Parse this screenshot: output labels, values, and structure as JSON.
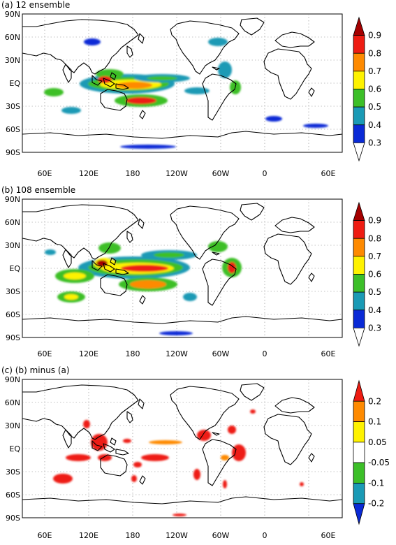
{
  "panels": [
    {
      "title": "(a) 12 ensemble",
      "colorbar": {
        "labels": [
          "0.9",
          "0.8",
          "0.7",
          "0.6",
          "0.5",
          "0.4",
          "0.3"
        ],
        "colors": [
          "#a50000",
          "#ee1c12",
          "#fe8a00",
          "#fef200",
          "#3cbf28",
          "#1a9ab5",
          "#0a2ad6",
          "#ffffff"
        ]
      }
    },
    {
      "title": "(b) 108 ensemble",
      "colorbar": {
        "labels": [
          "0.9",
          "0.8",
          "0.7",
          "0.6",
          "0.5",
          "0.4",
          "0.3"
        ],
        "colors": [
          "#a50000",
          "#ee1c12",
          "#fe8a00",
          "#fef200",
          "#3cbf28",
          "#1a9ab5",
          "#0a2ad6",
          "#ffffff"
        ]
      }
    },
    {
      "title": "(c) (b) minus (a)",
      "colorbar": {
        "labels": [
          "0.2",
          "0.1",
          "0.05",
          "-0.05",
          "-0.1",
          "-0.2"
        ],
        "colors": [
          "#ee1c12",
          "#fe8a00",
          "#fef200",
          "#ffffff",
          "#3cbf28",
          "#1a9ab5",
          "#0a2ad6"
        ]
      }
    }
  ],
  "axes": {
    "lat_labels": [
      "90N",
      "60N",
      "30N",
      "EQ",
      "30S",
      "60S",
      "90S"
    ],
    "lon_labels": [
      "60E",
      "120E",
      "180",
      "120W",
      "60W",
      "0",
      "60E"
    ]
  },
  "colors": {
    "coast": "#000000",
    "grid": "#888888"
  }
}
